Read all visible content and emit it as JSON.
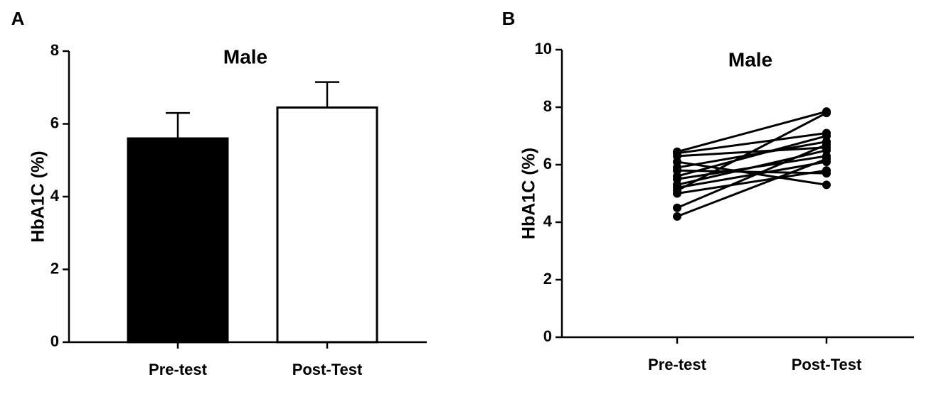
{
  "chart_data": [
    {
      "type": "bar",
      "panel_label": "A",
      "title": "Male",
      "y_label": "HbA1C (%)",
      "categories": [
        "Pre-test",
        "Post-Test"
      ],
      "values": [
        5.6,
        6.45
      ],
      "errors": [
        0.7,
        0.7
      ],
      "colors": [
        "#000000",
        "#ffffff"
      ],
      "edge_color": "#000000",
      "ylim": [
        0,
        8
      ],
      "yticks": [
        0,
        2,
        4,
        6,
        8
      ],
      "grid": false
    },
    {
      "type": "line",
      "panel_label": "B",
      "title": "Male",
      "y_label": "HbA1C (%)",
      "categories": [
        "Pre-test",
        "Post-Test"
      ],
      "color": "#000000",
      "series": [
        {
          "values": [
            6.45,
            7.85
          ]
        },
        {
          "values": [
            6.4,
            7.1
          ]
        },
        {
          "values": [
            6.3,
            6.6
          ]
        },
        {
          "values": [
            6.1,
            5.3
          ]
        },
        {
          "values": [
            5.9,
            6.8
          ]
        },
        {
          "values": [
            5.8,
            5.7
          ]
        },
        {
          "values": [
            5.6,
            7.0
          ]
        },
        {
          "values": [
            5.5,
            6.3
          ]
        },
        {
          "values": [
            5.3,
            6.5
          ]
        },
        {
          "values": [
            5.2,
            6.1
          ]
        },
        {
          "values": [
            5.0,
            5.8
          ]
        },
        {
          "values": [
            5.1,
            7.8
          ]
        },
        {
          "values": [
            4.5,
            6.7
          ]
        },
        {
          "values": [
            4.2,
            6.2
          ]
        }
      ],
      "ylim": [
        0,
        10
      ],
      "yticks": [
        0,
        2,
        4,
        6,
        8,
        10
      ],
      "grid": false
    }
  ]
}
